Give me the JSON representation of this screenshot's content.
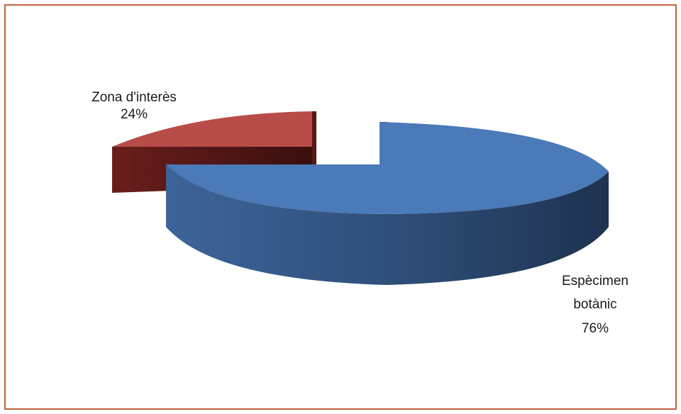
{
  "chart_data": {
    "type": "pie",
    "title": "",
    "style": "3d-exploded",
    "slices": [
      {
        "name": "Espècimen botànic",
        "name_lines": [
          "Espècimen",
          "botànic"
        ],
        "value": 76,
        "percent_label": "76%",
        "color": "#4a7ab8"
      },
      {
        "name": "Zona d'interès",
        "name_lines": [
          "Zona d'interès"
        ],
        "value": 24,
        "percent_label": "24%",
        "color": "#b84c48"
      }
    ]
  }
}
